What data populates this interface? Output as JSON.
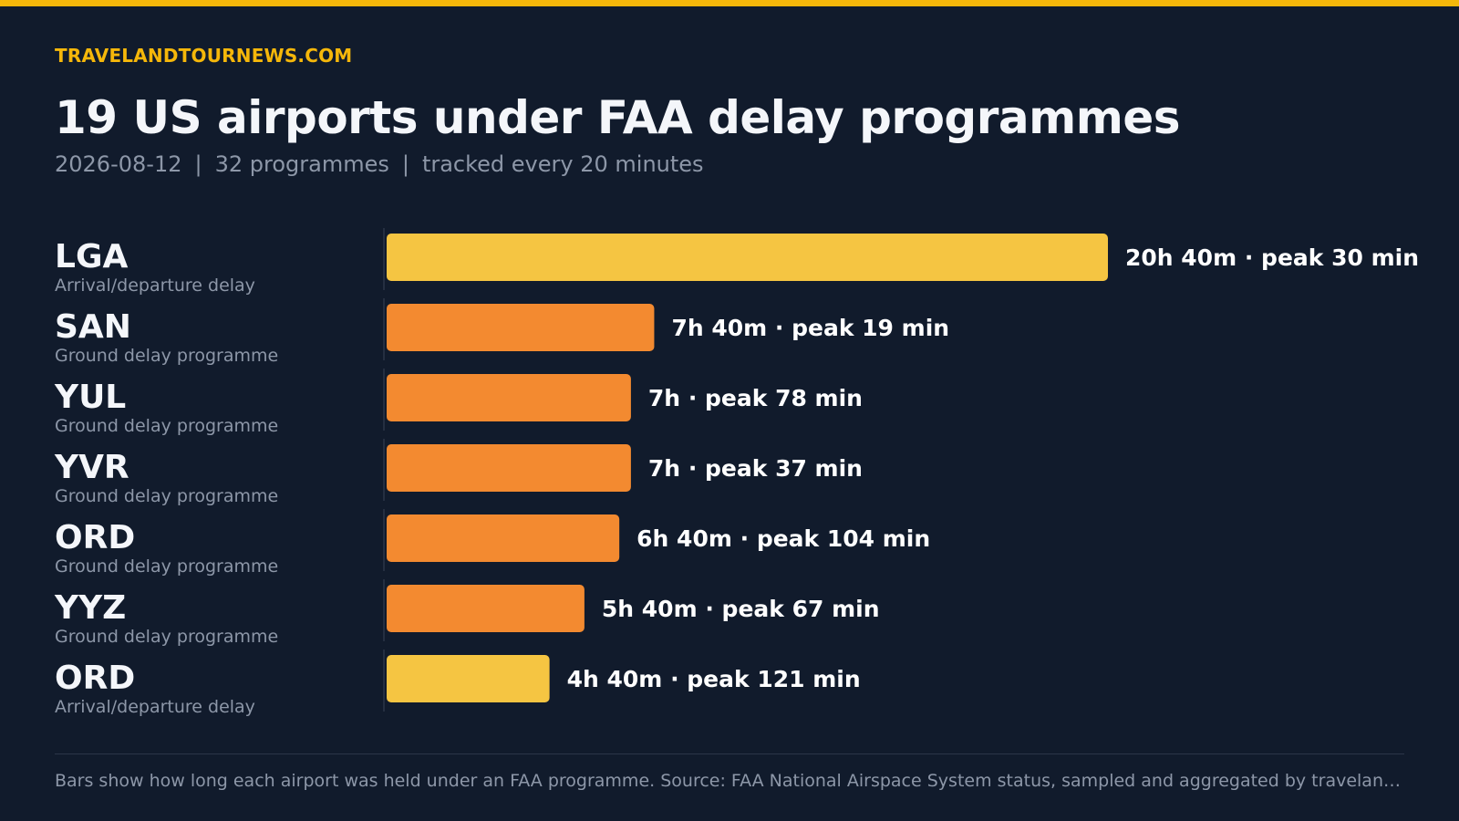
{
  "brand": "TRAVELANDTOURNEWS.COM",
  "title": "19 US airports under FAA delay programmes",
  "subtitle": {
    "date": "2026-08-12",
    "separator": "|",
    "count": "32 programmes",
    "cadence": "tracked every 20 minutes"
  },
  "footnote": "Bars show how long each airport was held under an FAA programme. Source: FAA National Airspace System status, sampled and aggregated by travelandtour…",
  "colors": {
    "accent": "#f5b70a",
    "arrival_departure_delay": "#f5c542",
    "ground_delay_programme": "#f38a30",
    "background": "#111b2c"
  },
  "chart_data": {
    "type": "bar",
    "orientation": "horizontal",
    "unit": "hours",
    "categories": [
      "LGA",
      "SAN",
      "YUL",
      "YVR",
      "ORD",
      "YYZ",
      "ORD"
    ],
    "programme_types": [
      "Arrival/departure delay",
      "Ground delay programme",
      "Ground delay programme",
      "Ground delay programme",
      "Ground delay programme",
      "Ground delay programme",
      "Arrival/departure delay"
    ],
    "values": [
      20.667,
      7.667,
      7,
      7,
      6.667,
      5.667,
      4.667
    ],
    "duration_labels": [
      "20h 40m",
      "7h 40m",
      "7h",
      "7h",
      "6h 40m",
      "5h 40m",
      "4h 40m"
    ],
    "peak_labels": [
      "peak 30 min",
      "peak 19 min",
      "peak 78 min",
      "peak 37 min",
      "peak 104 min",
      "peak 67 min",
      "peak 121 min"
    ],
    "label_separator": "·",
    "xlim": [
      0,
      20.667
    ],
    "grid": false,
    "legend": "none"
  }
}
